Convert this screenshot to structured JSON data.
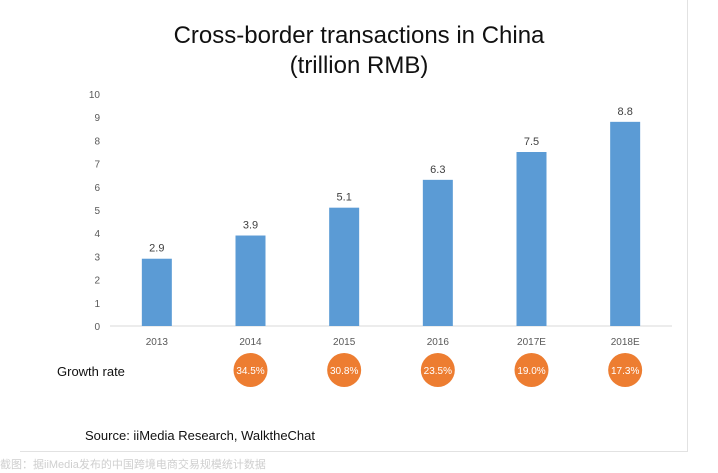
{
  "chart_data": {
    "type": "bar",
    "title": "Cross-border transactions in China",
    "subtitle": "(trillion RMB)",
    "categories": [
      "2013",
      "2014",
      "2015",
      "2016",
      "2017E",
      "2018E"
    ],
    "values": [
      2.9,
      3.9,
      5.1,
      6.3,
      7.5,
      8.8
    ],
    "data_labels": [
      "2.9",
      "3.9",
      "5.1",
      "6.3",
      "7.5",
      "8.8"
    ],
    "ylim": [
      0,
      10
    ],
    "yticks": [
      "0",
      "1",
      "2",
      "3",
      "4",
      "5",
      "6",
      "7",
      "8",
      "9",
      "10"
    ],
    "grid": false,
    "bar_color": "#5b9bd5",
    "growth_rate": {
      "label": "Growth rate",
      "values": [
        "",
        "34.5%",
        "30.8%",
        "23.5%",
        "19.0%",
        "17.3%"
      ],
      "color": "#ed7d31"
    }
  },
  "source": "Source: iiMedia Research, WalktheChat",
  "caption": "截图：据iiMedia发布的中国跨境电商交易规模统计数据"
}
